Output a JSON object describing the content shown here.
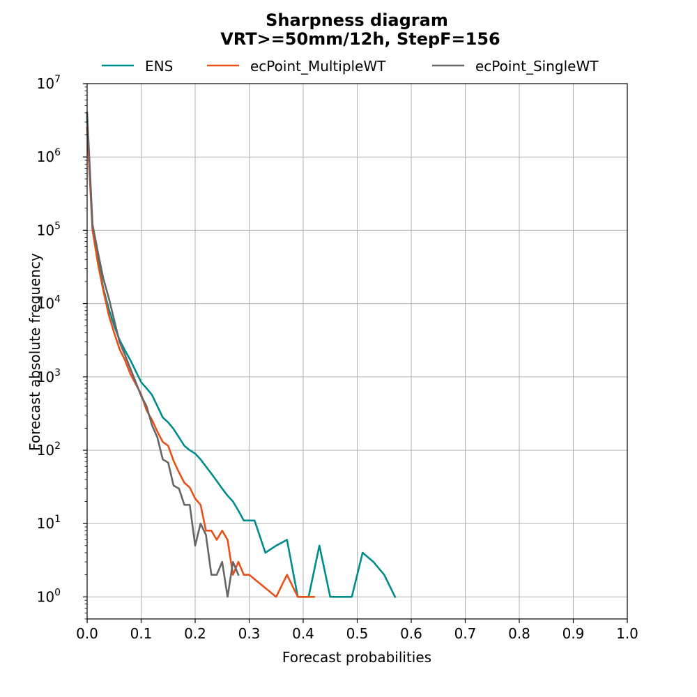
{
  "chart_data": {
    "type": "line",
    "title": "Sharpness diagram",
    "subtitle": "VRT>=50mm/12h, StepF=156",
    "xlabel": "Forecast probabilities",
    "ylabel": "Forecast absolute frequency",
    "xlim": [
      0.0,
      1.0
    ],
    "ylim": [
      0.5,
      10000000
    ],
    "yscale": "log",
    "grid": true,
    "legend_position": "top-center",
    "x_ticks": [
      "0.0",
      "0.1",
      "0.2",
      "0.3",
      "0.4",
      "0.5",
      "0.6",
      "0.7",
      "0.8",
      "0.9",
      "1.0"
    ],
    "y_ticks": [
      {
        "base": "10",
        "exp": "0",
        "value": 1
      },
      {
        "base": "10",
        "exp": "1",
        "value": 10
      },
      {
        "base": "10",
        "exp": "2",
        "value": 100
      },
      {
        "base": "10",
        "exp": "3",
        "value": 1000
      },
      {
        "base": "10",
        "exp": "4",
        "value": 10000
      },
      {
        "base": "10",
        "exp": "5",
        "value": 100000
      },
      {
        "base": "10",
        "exp": "6",
        "value": 1000000
      },
      {
        "base": "10",
        "exp": "7",
        "value": 10000000
      }
    ],
    "series": [
      {
        "name": "ENS",
        "color": "#008b8b",
        "points": [
          [
            0.0,
            3500000
          ],
          [
            0.01,
            100000
          ],
          [
            0.02,
            40000
          ],
          [
            0.03,
            16000
          ],
          [
            0.04,
            8500
          ],
          [
            0.05,
            5000
          ],
          [
            0.06,
            3200
          ],
          [
            0.07,
            2300
          ],
          [
            0.08,
            1700
          ],
          [
            0.09,
            1200
          ],
          [
            0.1,
            850
          ],
          [
            0.11,
            700
          ],
          [
            0.12,
            570
          ],
          [
            0.13,
            400
          ],
          [
            0.14,
            280
          ],
          [
            0.15,
            240
          ],
          [
            0.16,
            195
          ],
          [
            0.17,
            150
          ],
          [
            0.18,
            115
          ],
          [
            0.19,
            100
          ],
          [
            0.2,
            90
          ],
          [
            0.21,
            75
          ],
          [
            0.22,
            60
          ],
          [
            0.23,
            48
          ],
          [
            0.24,
            38
          ],
          [
            0.25,
            30
          ],
          [
            0.26,
            24
          ],
          [
            0.27,
            20
          ],
          [
            0.28,
            15
          ],
          [
            0.29,
            11
          ],
          [
            0.3,
            11
          ],
          [
            0.31,
            11
          ],
          [
            0.33,
            4
          ],
          [
            0.35,
            5
          ],
          [
            0.37,
            6
          ],
          [
            0.39,
            1
          ],
          [
            0.41,
            1
          ],
          [
            0.43,
            5
          ],
          [
            0.45,
            1
          ],
          [
            0.47,
            1
          ],
          [
            0.49,
            1
          ],
          [
            0.51,
            4
          ],
          [
            0.53,
            3
          ],
          [
            0.55,
            2
          ],
          [
            0.57,
            1
          ]
        ]
      },
      {
        "name": "ecPoint_MultipleWT",
        "color": "#e8501a",
        "points": [
          [
            0.0,
            2500000
          ],
          [
            0.01,
            100000
          ],
          [
            0.02,
            35000
          ],
          [
            0.03,
            15000
          ],
          [
            0.04,
            7000
          ],
          [
            0.05,
            4000
          ],
          [
            0.06,
            2400
          ],
          [
            0.07,
            1700
          ],
          [
            0.08,
            1100
          ],
          [
            0.09,
            800
          ],
          [
            0.1,
            580
          ],
          [
            0.11,
            350
          ],
          [
            0.12,
            260
          ],
          [
            0.13,
            180
          ],
          [
            0.14,
            130
          ],
          [
            0.15,
            115
          ],
          [
            0.16,
            72
          ],
          [
            0.17,
            50
          ],
          [
            0.18,
            36
          ],
          [
            0.19,
            31
          ],
          [
            0.2,
            22
          ],
          [
            0.21,
            18
          ],
          [
            0.22,
            8
          ],
          [
            0.23,
            8
          ],
          [
            0.24,
            6
          ],
          [
            0.25,
            8
          ],
          [
            0.26,
            6
          ],
          [
            0.27,
            2
          ],
          [
            0.28,
            3
          ],
          [
            0.29,
            2
          ],
          [
            0.3,
            2
          ],
          [
            0.35,
            1
          ],
          [
            0.37,
            2
          ],
          [
            0.39,
            1
          ],
          [
            0.42,
            1
          ]
        ]
      },
      {
        "name": "ecPoint_SingleWT",
        "color": "#666666",
        "points": [
          [
            0.0,
            4000000
          ],
          [
            0.01,
            120000
          ],
          [
            0.02,
            50000
          ],
          [
            0.03,
            22000
          ],
          [
            0.04,
            12000
          ],
          [
            0.05,
            6000
          ],
          [
            0.06,
            3000
          ],
          [
            0.07,
            2000
          ],
          [
            0.08,
            1300
          ],
          [
            0.09,
            850
          ],
          [
            0.1,
            550
          ],
          [
            0.11,
            400
          ],
          [
            0.12,
            220
          ],
          [
            0.13,
            150
          ],
          [
            0.14,
            75
          ],
          [
            0.15,
            68
          ],
          [
            0.16,
            33
          ],
          [
            0.17,
            30
          ],
          [
            0.18,
            18
          ],
          [
            0.19,
            18
          ],
          [
            0.2,
            5
          ],
          [
            0.21,
            10
          ],
          [
            0.22,
            7
          ],
          [
            0.23,
            2
          ],
          [
            0.24,
            2
          ],
          [
            0.25,
            3
          ],
          [
            0.26,
            1
          ],
          [
            0.27,
            3
          ],
          [
            0.28,
            2
          ]
        ]
      }
    ]
  }
}
